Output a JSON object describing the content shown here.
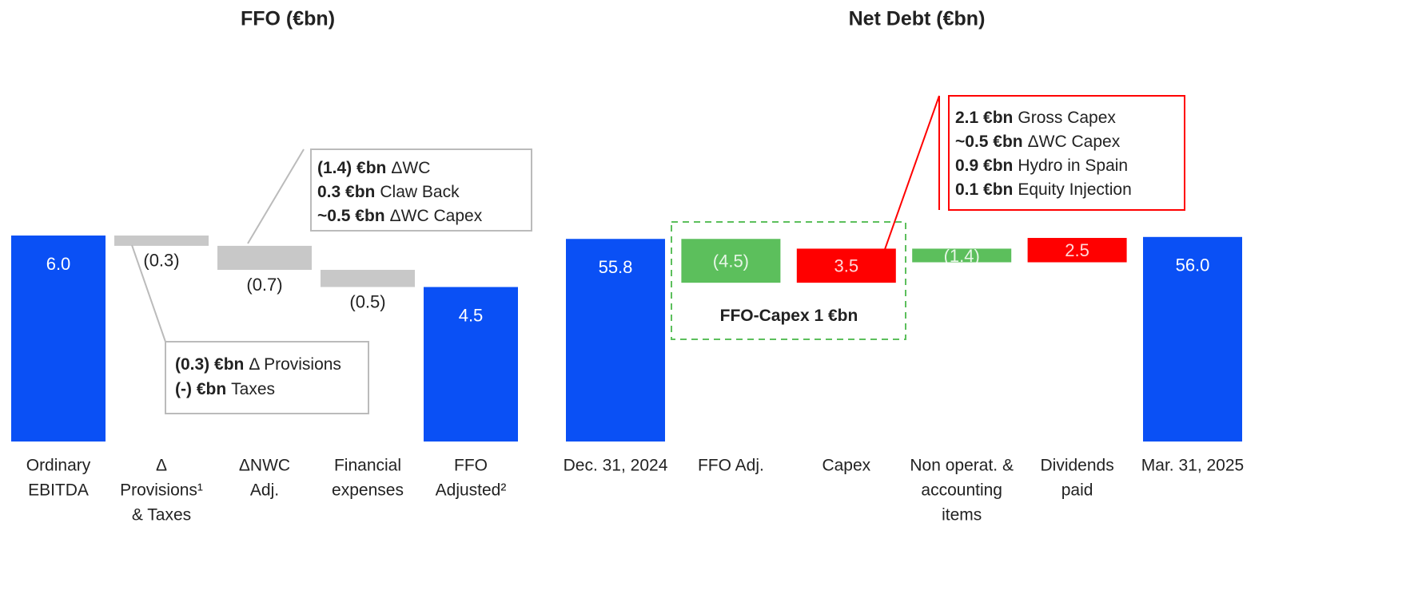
{
  "chart_data": [
    {
      "type": "waterfall",
      "title": "FFO (€bn)",
      "categories": [
        [
          "Ordinary",
          "EBITDA"
        ],
        [
          "Δ",
          "Provisions¹",
          "& Taxes"
        ],
        [
          "ΔNWC",
          "Adj."
        ],
        [
          "Financial",
          "expenses"
        ],
        [
          "FFO",
          "Adjusted²"
        ]
      ],
      "values": [
        6.0,
        -0.3,
        -0.7,
        -0.5,
        4.5
      ],
      "value_labels": [
        "6.0",
        "(0.3)",
        "(0.7)",
        "(0.5)",
        "4.5"
      ],
      "measures": [
        "absolute",
        "relative",
        "relative",
        "relative",
        "absolute"
      ],
      "colors": [
        "#0a50f5",
        "#c8c8c8",
        "#c8c8c8",
        "#c8c8c8",
        "#0a50f5"
      ],
      "ylim": [
        0,
        7
      ],
      "annotations": [
        {
          "lines": [
            {
              "bold": "(1.4) €bn",
              "text": "ΔWC"
            },
            {
              "bold": "0.3 €bn",
              "text": "Claw Back"
            },
            {
              "bold": "~0.5 €bn",
              "text": "ΔWC Capex"
            }
          ]
        },
        {
          "lines": [
            {
              "bold": "(0.3) €bn",
              "text": "Δ Provisions"
            },
            {
              "bold": "(-) €bn",
              "text": "Taxes"
            }
          ]
        }
      ]
    },
    {
      "type": "waterfall",
      "title": "Net Debt (€bn)",
      "categories": [
        [
          "Dec. 31, 2024"
        ],
        [
          "FFO Adj."
        ],
        [
          "Capex"
        ],
        [
          "Non operat. &",
          "accounting",
          "items"
        ],
        [
          "Dividends",
          "paid"
        ],
        [
          "Mar. 31, 2025"
        ]
      ],
      "values": [
        55.8,
        -4.5,
        3.5,
        -1.4,
        2.5,
        56.0
      ],
      "value_labels": [
        "55.8",
        "(4.5)",
        "3.5",
        "(1.4)",
        "2.5",
        "56.0"
      ],
      "measures": [
        "absolute",
        "relative",
        "relative",
        "relative",
        "relative",
        "absolute"
      ],
      "colors": [
        "#0a50f5",
        "#5cbf5c",
        "#ff0000",
        "#5cbf5c",
        "#ff0000",
        "#0a50f5"
      ],
      "ylim": [
        35,
        60
      ],
      "annotations": [
        {
          "lines": [
            {
              "bold": "2.1 €bn",
              "text": "Gross Capex"
            },
            {
              "bold": "~0.5 €bn",
              "text": "ΔWC Capex"
            },
            {
              "bold": "0.9 €bn",
              "text": "Hydro in Spain"
            },
            {
              "bold": "0.1 €bn",
              "text": "Equity Injection"
            }
          ]
        },
        {
          "lines": [
            {
              "bold": "FFO-Capex 1 €bn"
            }
          ]
        }
      ]
    }
  ]
}
